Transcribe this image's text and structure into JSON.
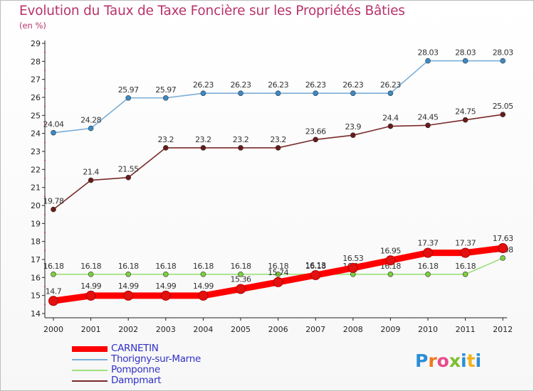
{
  "title": "Evolution du Taux de Taxe Foncière sur les Propriétés Bâties",
  "subtitle": "(en %)",
  "logo": {
    "letters": [
      {
        "ch": "P",
        "color": "#2b8fd6"
      },
      {
        "ch": "r",
        "color": "#f07a1a"
      },
      {
        "ch": "o",
        "color": "#e84a8a"
      },
      {
        "ch": "x",
        "color": "#7cbf2e"
      },
      {
        "ch": "i",
        "color": "#2b8fd6"
      },
      {
        "ch": "t",
        "color": "#f2b21c"
      },
      {
        "ch": "i",
        "color": "#2b8fd6"
      }
    ]
  },
  "chart_data": {
    "type": "line",
    "x": [
      "2000",
      "2001",
      "2002",
      "2003",
      "2004",
      "2005",
      "2006",
      "2007",
      "2008",
      "2009",
      "2010",
      "2011",
      "2012"
    ],
    "ylim": [
      14,
      29
    ],
    "yticks": [
      14,
      15,
      16,
      17,
      18,
      19,
      20,
      21,
      22,
      23,
      24,
      25,
      26,
      27,
      28,
      29
    ],
    "grid": false,
    "legend_position": "bottom-left",
    "series": [
      {
        "name": "CARNETIN",
        "color": "#ff0000",
        "marker": "#e31010",
        "values": [
          14.7,
          14.99,
          14.99,
          14.99,
          14.99,
          15.36,
          15.74,
          16.13,
          16.53,
          16.95,
          17.37,
          17.37,
          17.63
        ],
        "labels": [
          "14.7",
          "14.99",
          "14.99",
          "14.99",
          "14.99",
          "15.36",
          "15.74",
          "16.13",
          "16.53",
          "16.95",
          "17.37",
          "17.37",
          "17.63"
        ]
      },
      {
        "name": "Thorigny-sur-Marne",
        "color": "#7aaed8",
        "marker": "#3a8ac6",
        "values": [
          24.04,
          24.28,
          25.97,
          25.97,
          26.23,
          26.23,
          26.23,
          26.23,
          26.23,
          26.23,
          28.03,
          28.03,
          28.03
        ],
        "labels": [
          "24.04",
          "24.28",
          "25.97",
          "25.97",
          "26.23",
          "26.23",
          "26.23",
          "26.23",
          "26.23",
          "26.23",
          "28.03",
          "28.03",
          "28.03"
        ]
      },
      {
        "name": "Pomponne",
        "color": "#9ee07a",
        "marker": "#7ccf3e",
        "values": [
          16.18,
          16.18,
          16.18,
          16.18,
          16.18,
          16.18,
          16.18,
          16.18,
          16.18,
          16.18,
          16.18,
          16.18,
          17.08
        ],
        "labels": [
          "16.18",
          "16.18",
          "16.18",
          "16.18",
          "16.18",
          "16.18",
          "16.18",
          "16.18",
          "16.18",
          "16.18",
          "16.18",
          "16.18",
          "17.08"
        ]
      },
      {
        "name": "Dampmart",
        "color": "#7a2a2a",
        "marker": "#6a1a1a",
        "values": [
          19.78,
          21.4,
          21.55,
          23.2,
          23.2,
          23.2,
          23.2,
          23.66,
          23.9,
          24.4,
          24.45,
          24.75,
          25.05
        ],
        "labels": [
          "19.78",
          "21.4",
          "21.55",
          "23.2",
          "23.2",
          "23.2",
          "23.2",
          "23.66",
          "23.9",
          "24.4",
          "24.45",
          "24.75",
          "25.05"
        ]
      }
    ]
  }
}
